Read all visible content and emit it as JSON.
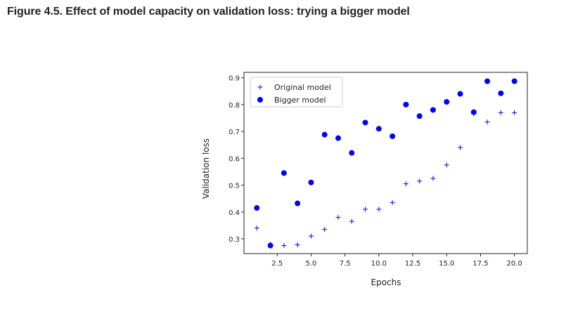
{
  "figure": {
    "title": "Figure 4.5. Effect of model capacity on validation loss: trying a bigger model"
  },
  "chart_data": {
    "type": "scatter",
    "title": "",
    "xlabel": "Epochs",
    "ylabel": "Validation loss",
    "xlim": [
      0.05,
      20.95
    ],
    "ylim": [
      0.245,
      0.92
    ],
    "xticks": [
      2.5,
      5.0,
      7.5,
      10.0,
      12.5,
      15.0,
      17.5,
      20.0
    ],
    "xtick_labels": [
      "2.5",
      "5.0",
      "7.5",
      "10.0",
      "12.5",
      "15.0",
      "17.5",
      "20.0"
    ],
    "yticks": [
      0.3,
      0.4,
      0.5,
      0.6,
      0.7,
      0.8,
      0.9
    ],
    "ytick_labels": [
      "0.3",
      "0.4",
      "0.5",
      "0.6",
      "0.7",
      "0.8",
      "0.9"
    ],
    "grid": false,
    "legend_position": "top-left",
    "x": [
      1,
      2,
      3,
      4,
      5,
      6,
      7,
      8,
      9,
      10,
      11,
      12,
      13,
      14,
      15,
      16,
      17,
      18,
      19,
      20
    ],
    "series": [
      {
        "name": "Original model",
        "marker": "plus",
        "color": "#0000ff",
        "values": [
          0.34,
          0.28,
          0.275,
          0.278,
          0.31,
          0.335,
          0.38,
          0.365,
          0.41,
          0.41,
          0.435,
          0.505,
          0.515,
          0.525,
          0.575,
          0.64,
          0.765,
          0.735,
          0.77,
          0.77
        ]
      },
      {
        "name": "Bigger model",
        "marker": "circle",
        "color": "#0000ff",
        "values": [
          0.415,
          0.275,
          0.545,
          0.432,
          0.51,
          0.688,
          0.675,
          0.62,
          0.733,
          0.71,
          0.682,
          0.8,
          0.757,
          0.78,
          0.81,
          0.84,
          0.772,
          0.887,
          0.842,
          0.887
        ]
      }
    ]
  }
}
